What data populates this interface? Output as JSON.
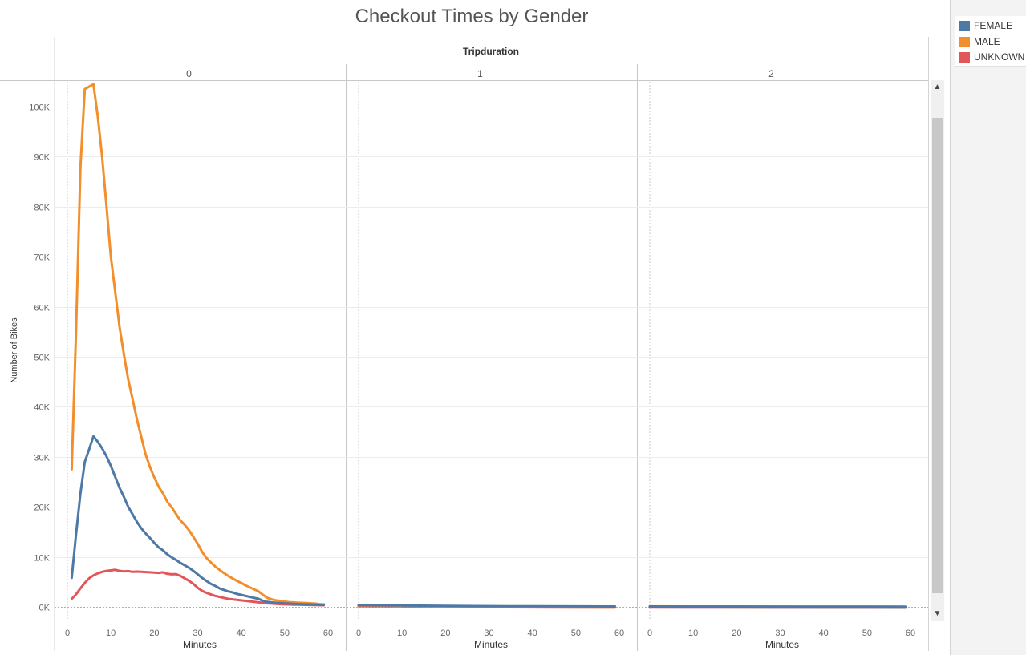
{
  "chart_data": {
    "type": "line",
    "title": "Checkout Times by Gender",
    "column_header": "Tripduration",
    "panels": [
      "0",
      "1",
      "2"
    ],
    "xlabel": "Minutes",
    "ylabel": "Number of Bikes",
    "xticks": [
      "0",
      "10",
      "20",
      "30",
      "40",
      "50",
      "60"
    ],
    "xlim": [
      0,
      60
    ],
    "yticks": [
      "0K",
      "10K",
      "20K",
      "30K",
      "40K",
      "50K",
      "60K",
      "70K",
      "80K",
      "90K",
      "100K"
    ],
    "ylim": [
      0,
      105000
    ],
    "grid": true,
    "legend_position": "right",
    "colors": {
      "FEMALE": "#4e79a7",
      "MALE": "#f28e2b",
      "UNKNOWN": "#e15759"
    },
    "series": [
      {
        "name": "MALE",
        "panels": [
          {
            "x": [
              1,
              2,
              3,
              4,
              5,
              6,
              7,
              8,
              9,
              10,
              11,
              12,
              13,
              14,
              15,
              16,
              17,
              18,
              19,
              20,
              21,
              22,
              23,
              24,
              25,
              26,
              27,
              28,
              29,
              30,
              31,
              32,
              33,
              34,
              35,
              36,
              37,
              38,
              39,
              40,
              41,
              42,
              43,
              44,
              45,
              46,
              47,
              48,
              49,
              50,
              51,
              52,
              53,
              54,
              55,
              56,
              57,
              58,
              59
            ],
            "y": [
              27500,
              55000,
              88000,
              103500,
              104000,
              104500,
              98000,
              90000,
              80000,
              70000,
              63000,
              56000,
              50500,
              45500,
              41500,
              37500,
              34000,
              30500,
              28000,
              25900,
              24000,
              22700,
              21000,
              19900,
              18600,
              17300,
              16400,
              15300,
              14000,
              12600,
              11000,
              9800,
              8900,
              8100,
              7400,
              6800,
              6200,
              5700,
              5200,
              4800,
              4300,
              3900,
              3500,
              3100,
              2400,
              1800,
              1500,
              1300,
              1200,
              1050,
              950,
              900,
              850,
              800,
              750,
              700,
              650,
              550,
              500
            ]
          },
          {
            "x": [
              0,
              10,
              20,
              30,
              40,
              50,
              59
            ],
            "y": [
              300,
              250,
              150,
              100,
              80,
              60,
              50
            ]
          },
          {
            "x": [
              0,
              10,
              20,
              30,
              40,
              50,
              59
            ],
            "y": [
              100,
              80,
              60,
              50,
              40,
              30,
              20
            ]
          }
        ]
      },
      {
        "name": "FEMALE",
        "panels": [
          {
            "x": [
              1,
              2,
              3,
              4,
              5,
              6,
              7,
              8,
              9,
              10,
              11,
              12,
              13,
              14,
              15,
              16,
              17,
              18,
              19,
              20,
              21,
              22,
              23,
              24,
              25,
              26,
              27,
              28,
              29,
              30,
              31,
              32,
              33,
              34,
              35,
              36,
              37,
              38,
              39,
              40,
              41,
              42,
              43,
              44,
              45,
              46,
              47,
              48,
              49,
              50,
              51,
              52,
              53,
              54,
              55,
              56,
              57,
              58,
              59
            ],
            "y": [
              5800,
              14500,
              22700,
              29000,
              31500,
              34100,
              33000,
              31700,
              30100,
              28200,
              26000,
              23800,
              22000,
              20000,
              18500,
              17000,
              15700,
              14700,
              13800,
              12800,
              11900,
              11300,
              10500,
              9900,
              9400,
              8800,
              8300,
              7800,
              7200,
              6500,
              5800,
              5200,
              4600,
              4200,
              3700,
              3400,
              3100,
              2900,
              2600,
              2400,
              2200,
              2000,
              1800,
              1600,
              1200,
              1000,
              900,
              800,
              750,
              700,
              650,
              600,
              560,
              520,
              500,
              480,
              450,
              420,
              400
            ]
          },
          {
            "x": [
              0,
              10,
              20,
              30,
              40,
              50,
              59
            ],
            "y": [
              350,
              280,
              200,
              150,
              120,
              100,
              80
            ]
          },
          {
            "x": [
              0,
              10,
              20,
              30,
              40,
              50,
              59
            ],
            "y": [
              80,
              70,
              60,
              50,
              40,
              30,
              20
            ]
          }
        ]
      },
      {
        "name": "UNKNOWN",
        "panels": [
          {
            "x": [
              1,
              2,
              3,
              4,
              5,
              6,
              7,
              8,
              9,
              10,
              11,
              12,
              13,
              14,
              15,
              16,
              17,
              18,
              19,
              20,
              21,
              22,
              23,
              24,
              25,
              26,
              27,
              28,
              29,
              30,
              31,
              32,
              33,
              34,
              35,
              36,
              37,
              38,
              39,
              40,
              41,
              42,
              43,
              44,
              45,
              46,
              47,
              48,
              49,
              50,
              51,
              52,
              53,
              54,
              55,
              56,
              57,
              58,
              59
            ],
            "y": [
              1600,
              2500,
              3700,
              4800,
              5700,
              6300,
              6700,
              7000,
              7200,
              7300,
              7400,
              7200,
              7100,
              7150,
              7000,
              7050,
              7000,
              6950,
              6900,
              6850,
              6800,
              6900,
              6600,
              6500,
              6550,
              6200,
              5700,
              5200,
              4600,
              3800,
              3200,
              2800,
              2500,
              2200,
              2000,
              1800,
              1600,
              1500,
              1400,
              1300,
              1200,
              1100,
              1000,
              900,
              800,
              700,
              650,
              600,
              550,
              500,
              480,
              450,
              430,
              410,
              400,
              380,
              360,
              340,
              320
            ]
          },
          {
            "x": [
              0,
              10,
              20,
              30,
              40,
              50,
              59
            ],
            "y": [
              150,
              120,
              100,
              80,
              60,
              50,
              40
            ]
          },
          {
            "x": [
              0,
              10,
              20,
              30,
              40,
              50,
              59
            ],
            "y": [
              40,
              35,
              30,
              25,
              20,
              15,
              10
            ]
          }
        ]
      }
    ]
  },
  "legend": {
    "items": [
      {
        "label": "FEMALE",
        "color": "#4e79a7"
      },
      {
        "label": "MALE",
        "color": "#f28e2b"
      },
      {
        "label": "UNKNOWN",
        "color": "#e15759"
      }
    ]
  },
  "scrollbar": {
    "up_icon": "▲",
    "down_icon": "▼"
  }
}
